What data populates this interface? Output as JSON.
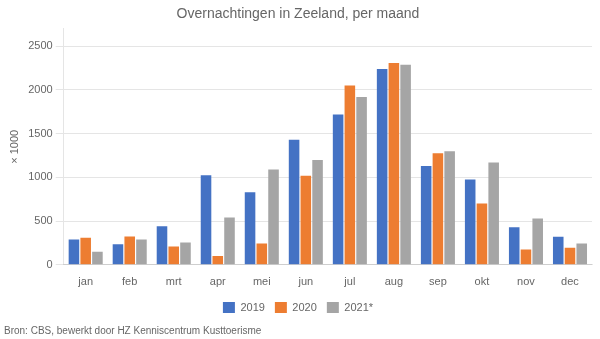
{
  "chart_data": {
    "type": "bar",
    "title": "Overnachtingen in Zeeland, per maand",
    "ylabel": "× 1000",
    "annotation": "Bron: CBS, bewerkt door HZ Kenniscentrum Kusttoerisme",
    "categories": [
      "jan",
      "feb",
      "mrt",
      "apr",
      "mei",
      "jun",
      "jul",
      "aug",
      "sep",
      "okt",
      "nov",
      "dec"
    ],
    "series": [
      {
        "name": "2019",
        "color": "#4472C4",
        "values": [
          290,
          235,
          440,
          1025,
          830,
          1430,
          1720,
          2240,
          1130,
          975,
          430,
          320
        ]
      },
      {
        "name": "2020",
        "color": "#ED7D31",
        "values": [
          310,
          325,
          210,
          100,
          245,
          1020,
          2050,
          2310,
          1275,
          700,
          175,
          195
        ]
      },
      {
        "name": "2021*",
        "color": "#A5A5A5",
        "values": [
          150,
          290,
          255,
          540,
          1090,
          1200,
          1920,
          2290,
          1300,
          1170,
          530,
          245
        ]
      }
    ],
    "ylim": [
      0,
      2700
    ],
    "yticks": [
      0,
      500,
      1000,
      1500,
      2000,
      2500
    ],
    "grid": true,
    "legend": "bottom"
  }
}
